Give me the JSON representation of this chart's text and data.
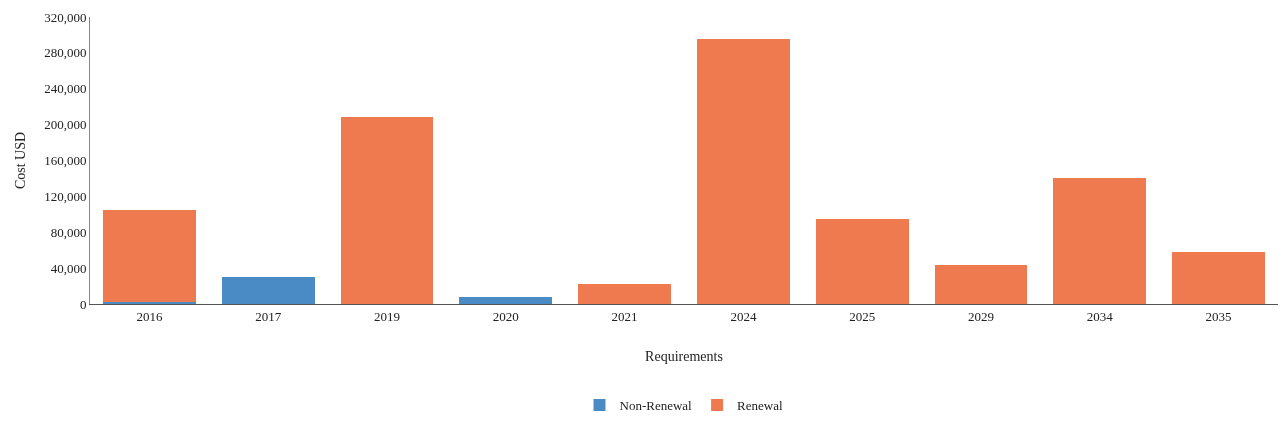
{
  "chart_data": {
    "type": "bar",
    "stacked": true,
    "xlabel": "Requirements",
    "ylabel": "Cost USD",
    "categories": [
      "2016",
      "2017",
      "2019",
      "2020",
      "2021",
      "2024",
      "2025",
      "2029",
      "2034",
      "2035"
    ],
    "series": [
      {
        "name": "Non-Renewal",
        "color": "#4a8bc6",
        "values": [
          2000,
          30000,
          0,
          8000,
          0,
          0,
          0,
          0,
          0,
          0
        ]
      },
      {
        "name": "Renewal",
        "color": "#ef7a50",
        "values": [
          103000,
          0,
          209000,
          0,
          22000,
          295000,
          95000,
          43000,
          141000,
          58000
        ]
      }
    ],
    "ylim": [
      0,
      320000
    ],
    "yticks": [
      {
        "value": 0,
        "label": "0"
      },
      {
        "value": 40000,
        "label": "40,000"
      },
      {
        "value": 80000,
        "label": "80,000"
      },
      {
        "value": 120000,
        "label": "120,000"
      },
      {
        "value": 160000,
        "label": "160,000"
      },
      {
        "value": 200000,
        "label": "200,000"
      },
      {
        "value": 240000,
        "label": "240,000"
      },
      {
        "value": 280000,
        "label": "280,000"
      },
      {
        "value": 320000,
        "label": "320,000"
      }
    ],
    "legend": "bottom"
  }
}
